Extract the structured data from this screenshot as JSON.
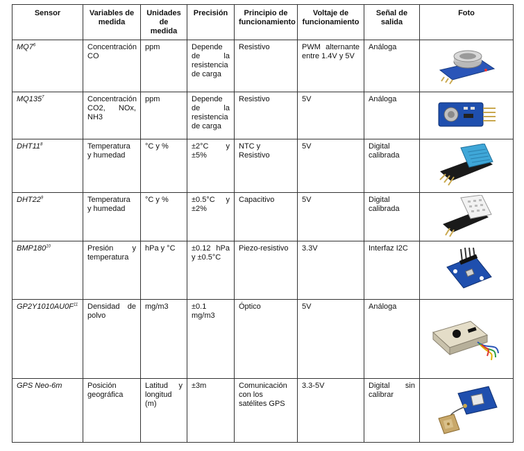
{
  "headers": {
    "sensor": "Sensor",
    "variables": "Variables de medida",
    "units": "Unidades de medida",
    "precision": "Precisión",
    "principle": "Principio de funcionamiento",
    "voltage": "Voltaje de funcionamiento",
    "signal": "Señal de salida",
    "photo": "Foto"
  },
  "rows": [
    {
      "sensor": "MQ7",
      "ref": "6",
      "variables": "Concentración CO",
      "units": "ppm",
      "precision": "Depende de la resistencia de carga",
      "principle": "Resistivo",
      "voltage": "PWM alternante entre 1.4V y 5V",
      "signal": "Análoga",
      "icon": "mq-gas-sensor-module-icon"
    },
    {
      "sensor": "MQ135",
      "ref": "7",
      "variables": "Concentración CO2, NOx, NH3",
      "units": "ppm",
      "precision": "Depende de la resistencia de carga",
      "principle": "Resistivo",
      "voltage": "5V",
      "signal": "Análoga",
      "icon": "blue-gas-sensor-board-icon"
    },
    {
      "sensor": "DHT11",
      "ref": "8",
      "variables": "Temperatura y humedad",
      "units": "°C y %",
      "precision": "±2°C y ±5%",
      "principle": "NTC y Resistivo",
      "voltage": "5V",
      "signal": "Digital calibrada",
      "icon": "dht11-module-icon"
    },
    {
      "sensor": "DHT22",
      "ref": "9",
      "variables": "Temperatura y humedad",
      "units": "°C y %",
      "precision": "±0.5°C y ±2%",
      "principle": "Capacitivo",
      "voltage": "5V",
      "signal": "Digital calibrada",
      "icon": "dht22-module-icon"
    },
    {
      "sensor": "BMP180",
      "ref": "10",
      "variables": "Presión y temperatura",
      "units": "hPa y °C",
      "precision": "±0.12 hPa y ±0.5°C",
      "principle": "Piezo-resistivo",
      "voltage": "3.3V",
      "signal": "Interfaz I2C",
      "icon": "bmp180-board-icon"
    },
    {
      "sensor": "GP2Y1010AU0F",
      "ref": "11",
      "variables": "Densidad de polvo",
      "units": "mg/m3",
      "precision": "±0.1 mg/m3",
      "principle": "Óptico",
      "voltage": "5V",
      "signal": "Análoga",
      "icon": "dust-sensor-icon"
    },
    {
      "sensor": "GPS Neo-6m",
      "ref": "",
      "variables": "Posición geográfica",
      "units": "Latitud y longitud (m)",
      "precision": "±3m",
      "principle": "Comunicación con los satélites GPS",
      "voltage": "3.3-5V",
      "signal": "Digital sin calibrar",
      "icon": "gps-module-antenna-icon"
    }
  ]
}
